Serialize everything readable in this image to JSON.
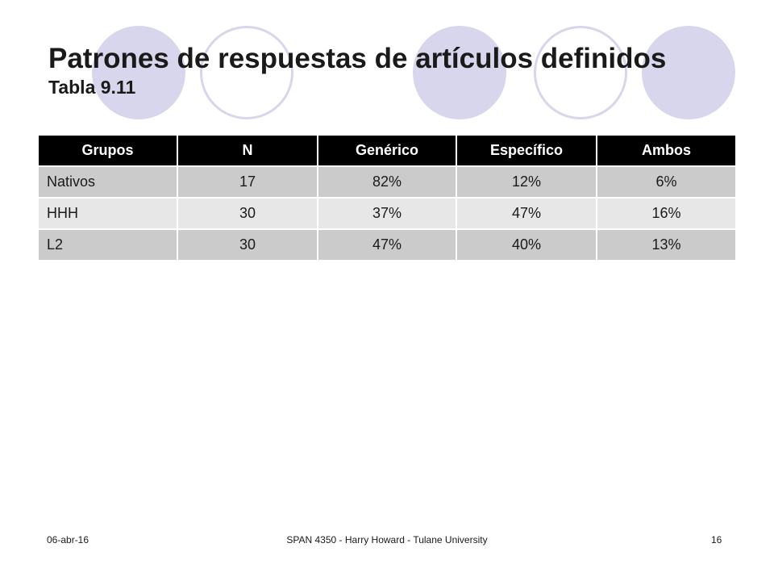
{
  "slide": {
    "title": "Patrones de respuestas de artículos definidos",
    "subtitle": "Tabla 9.11"
  },
  "table": {
    "headers": [
      "Grupos",
      "N",
      "Genérico",
      "Específico",
      "Ambos"
    ],
    "rows": [
      [
        "Nativos",
        "17",
        "82%",
        "12%",
        "6%"
      ],
      [
        "HHH",
        "30",
        "37%",
        "47%",
        "16%"
      ],
      [
        "L2",
        "30",
        "47%",
        "40%",
        "13%"
      ]
    ]
  },
  "footer": {
    "date": "06-abr-16",
    "center": "SPAN 4350 - Harry Howard - Tulane University",
    "page_number": "16"
  },
  "colors": {
    "circle_fill": "#d8d6ec",
    "header_bg": "#000000",
    "row_dark": "#cbcbcb",
    "row_light": "#e7e7e7"
  }
}
